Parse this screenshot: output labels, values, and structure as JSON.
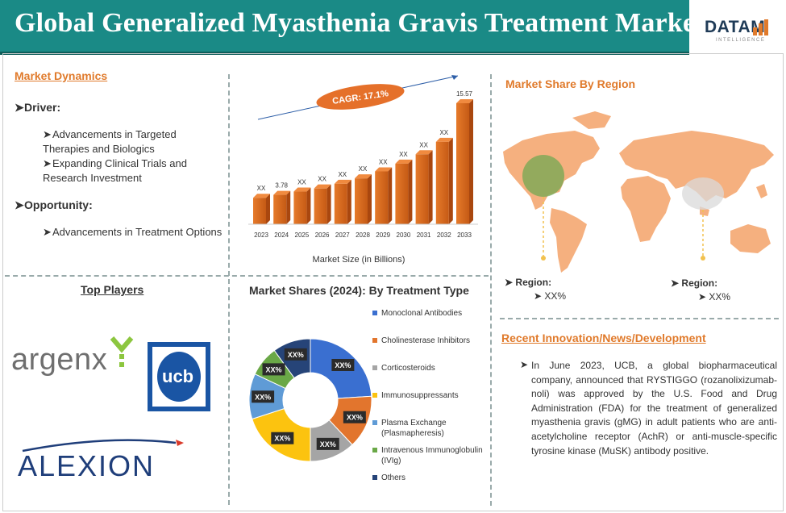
{
  "header": {
    "title": "Global Generalized Myasthenia Gravis Treatment Market",
    "logo_text": "DATAM",
    "logo_sub": "INTELLIGENCE"
  },
  "dynamics": {
    "title": "Market Dynamics",
    "driver_label": "Driver:",
    "drivers": [
      "Advancements in Targeted Therapies and Biologics",
      "Expanding Clinical Trials and Research Investment"
    ],
    "opportunity_label": "Opportunity:",
    "opportunities": [
      "Advancements in Treatment Options"
    ]
  },
  "chart_data": [
    {
      "type": "bar",
      "categories": [
        "2023",
        "2024",
        "2025",
        "2026",
        "2027",
        "2028",
        "2029",
        "2030",
        "2031",
        "2032",
        "2033"
      ],
      "values": [
        3.4,
        3.78,
        4.2,
        4.6,
        5.2,
        5.9,
        6.8,
        7.8,
        9.0,
        10.6,
        15.57
      ],
      "data_labels": [
        "XX",
        "3.78",
        "XX",
        "XX",
        "XX",
        "XX",
        "XX",
        "XX",
        "XX",
        "XX",
        "15.57"
      ],
      "xlabel": "Market Size (in Billions)",
      "annotation": "CAGR: 17.1%",
      "bar_color": "#e07a2b"
    },
    {
      "type": "pie",
      "title": "Market Shares (2024): By Treatment Type",
      "labels": [
        "Monoclonal Antibodies",
        "Cholinesterase Inhibitors",
        "Corticosteroids",
        "Immunosuppressants",
        "Plasma Exchange (Plasmapheresis)",
        "Intravenous Immunoglobulin (IVIg)",
        "Others"
      ],
      "values": [
        24,
        14,
        12,
        20,
        12,
        8,
        10
      ],
      "data_labels": [
        "XX%",
        "XX%",
        "XX%",
        "XX%",
        "XX%",
        "XX%",
        "XX%"
      ],
      "colors": [
        "#3a6fd0",
        "#e2752d",
        "#a5a5a5",
        "#fcc30f",
        "#5f9bd6",
        "#6aa847",
        "#264478"
      ]
    }
  ],
  "players": {
    "title": "Top Players",
    "names": [
      "argenx",
      "ucb",
      "ALEXION"
    ]
  },
  "region": {
    "title": "Market Share By Region",
    "items": [
      {
        "label": "Region:",
        "value": "XX%"
      },
      {
        "label": "Region:",
        "value": "XX%"
      }
    ]
  },
  "news": {
    "title": "Recent Innovation/News/Development",
    "text": "In June 2023, UCB, a global biopharmaceutical company, announced that RYSTIGGO (rozanolixizumab-noli) was approved by the U.S. Food and Drug Administration (FDA) for the treatment of generalized myasthenia gravis (gMG) in adult patients who are anti-acetylcholine receptor (AchR) or anti-muscle-specific tyrosine kinase (MuSK) antibody positive."
  }
}
